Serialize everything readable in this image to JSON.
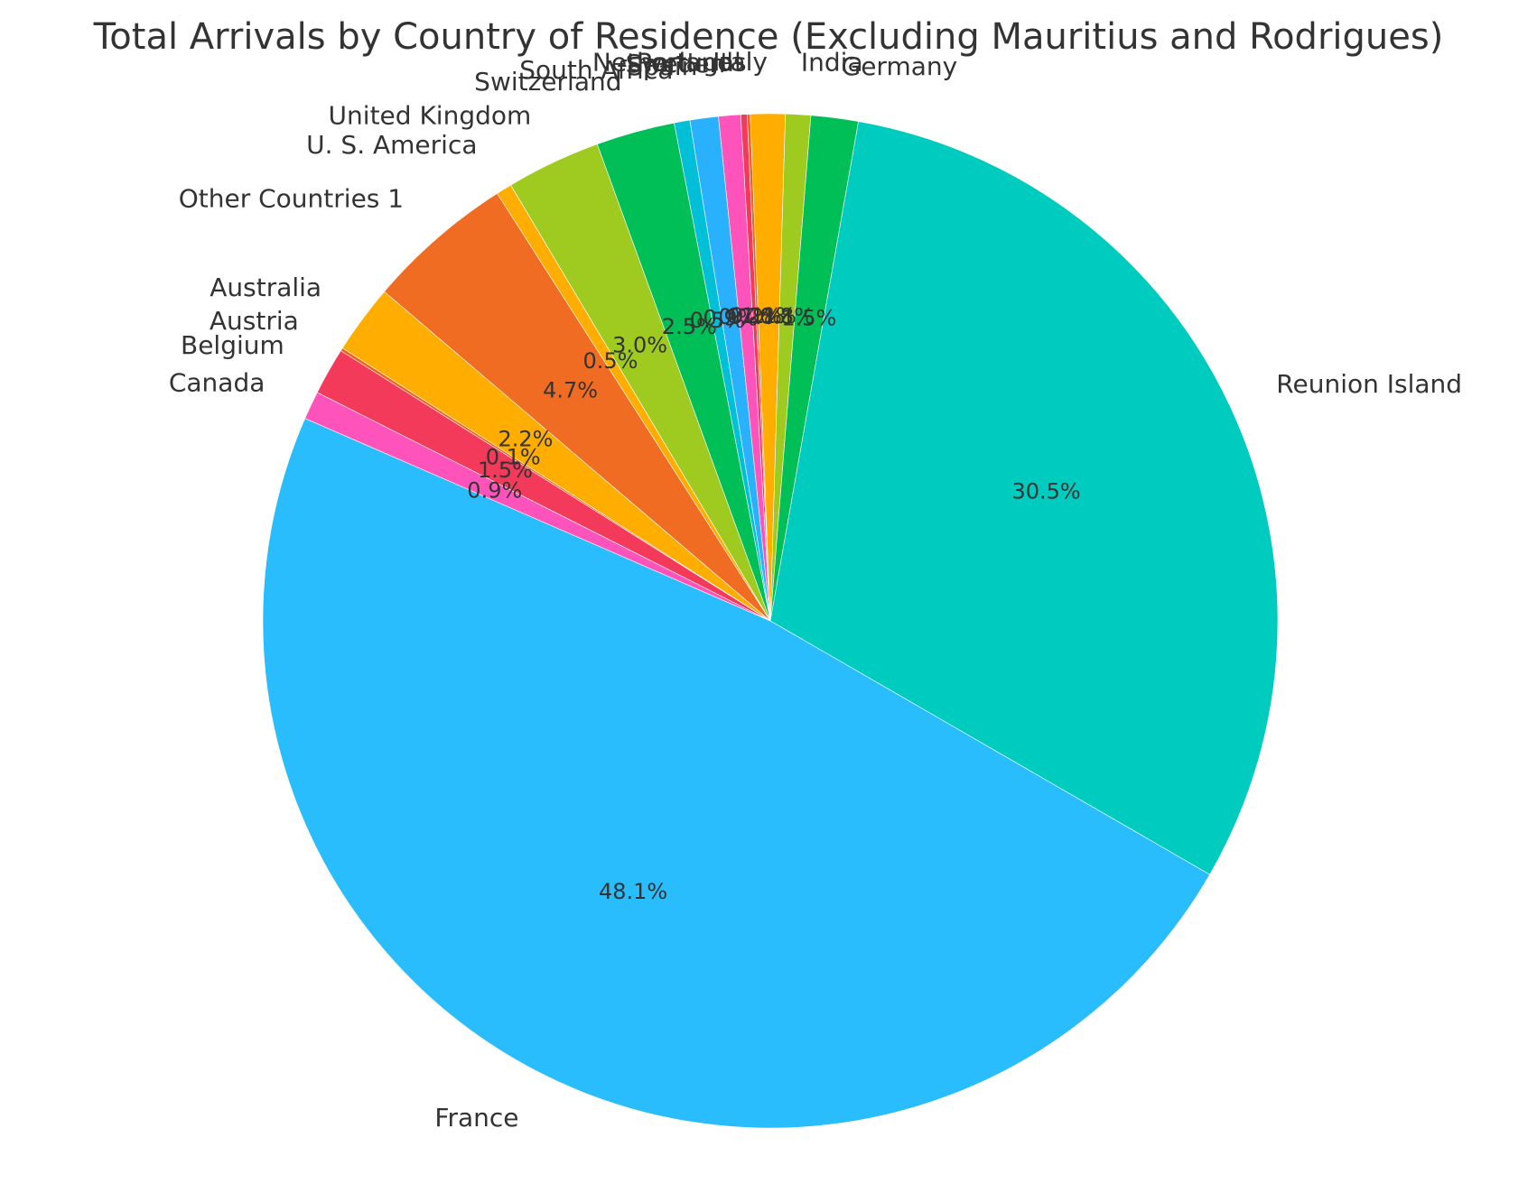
{
  "chart_data": {
    "type": "pie",
    "title": "Total Arrivals by Country of Residence (Excluding Mauritius and Rodrigues)",
    "slices": [
      {
        "label": "Reunion Island",
        "value": 30.5,
        "pct_label": "30.5%",
        "color": "#00cbbf"
      },
      {
        "label": "France",
        "value": 48.1,
        "pct_label": "48.1%",
        "color": "#29bdfd"
      },
      {
        "label": "Canada",
        "value": 0.9,
        "pct_label": "0.9%",
        "color": "#fe53bb"
      },
      {
        "label": "Belgium",
        "value": 1.5,
        "pct_label": "1.5%",
        "color": "#f43a5a"
      },
      {
        "label": "Austria",
        "value": 0.1,
        "pct_label": "0.1%",
        "color": "#f3631e"
      },
      {
        "label": "Australia",
        "value": 2.2,
        "pct_label": "2.2%",
        "color": "#ffae00"
      },
      {
        "label": "Other Countries 1",
        "value": 4.7,
        "pct_label": "4.7%",
        "color": "#f16c23"
      },
      {
        "label": "U. S. America",
        "value": 0.5,
        "pct_label": "0.5%",
        "color": "#ffae00"
      },
      {
        "label": "United Kingdom",
        "value": 3.0,
        "pct_label": "3.0%",
        "color": "#9fca1f"
      },
      {
        "label": "Switzerland",
        "value": 2.5,
        "pct_label": "2.5%",
        "color": "#00bf56"
      },
      {
        "label": "South Africa",
        "value": 0.5,
        "pct_label": "0.5%",
        "color": "#00bfd6"
      },
      {
        "label": "Spain",
        "value": 0.9,
        "pct_label": "0.9%",
        "color": "#29b1fd"
      },
      {
        "label": "Sweden",
        "value": 0.7,
        "pct_label": "0.7%",
        "color": "#fe53bb"
      },
      {
        "label": "Portugal",
        "value": 0.2,
        "pct_label": "0.2%",
        "color": "#f43a5a"
      },
      {
        "label": "Netherlands",
        "value": 0.1,
        "pct_label": "0.1%",
        "color": "#f3631e"
      },
      {
        "label": "Italy",
        "value": 1.1,
        "pct_label": "1.1%",
        "color": "#ffae00"
      },
      {
        "label": "India",
        "value": 0.8,
        "pct_label": "0.8%",
        "color": "#9fca1f"
      },
      {
        "label": "Germany",
        "value": 1.5,
        "pct_label": "1.5%",
        "color": "#00bf56"
      }
    ],
    "start_angle_deg": 80,
    "direction": "clockwise",
    "legend": "none"
  }
}
